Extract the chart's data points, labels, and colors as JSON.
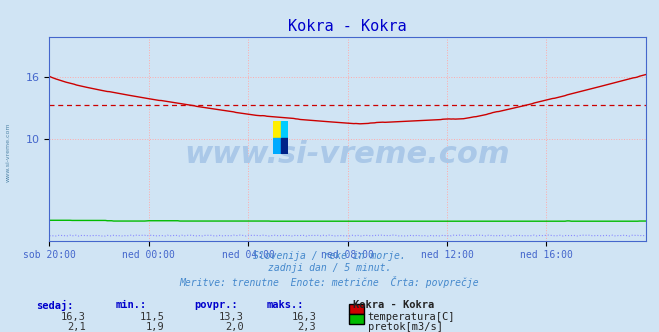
{
  "title": "Kokra - Kokra",
  "title_color": "#0000cc",
  "bg_color": "#d0e4f4",
  "plot_bg_color": "#d0e4f4",
  "grid_color": "#ffaaaa",
  "grid_linestyle": ":",
  "tick_color": "#4466cc",
  "x_tick_labels": [
    "sob 20:00",
    "ned 00:00",
    "ned 04:00",
    "ned 08:00",
    "ned 12:00",
    "ned 16:00"
  ],
  "x_tick_positions": [
    0,
    48,
    96,
    144,
    192,
    240
  ],
  "total_points": 289,
  "y_range": [
    0,
    20
  ],
  "y_ticks": [
    10,
    16
  ],
  "avg_line_value": 13.3,
  "avg_line_color": "#cc0000",
  "temp_color": "#cc0000",
  "flow_color": "#00bb00",
  "height_color": "#8888ff",
  "watermark_text": "www.si-vreme.com",
  "watermark_color": "#aac8e8",
  "subtitle_lines": [
    "Slovenija / reke in morje.",
    "zadnji dan / 5 minut.",
    "Meritve: trenutne  Enote: metrične  Črta: povprečje"
  ],
  "subtitle_color": "#4488cc",
  "footer_label_color": "#0000cc",
  "footer_headers": [
    "sedaj:",
    "min.:",
    "povpr.:",
    "maks.:"
  ],
  "footer_row1_vals": [
    "16,3",
    "11,5",
    "13,3",
    "16,3"
  ],
  "footer_row2_vals": [
    "2,1",
    "1,9",
    "2,0",
    "2,3"
  ],
  "footer_station": "Kokra - Kokra",
  "footer_legend1": "temperatura[C]",
  "footer_legend2": "pretok[m3/s]",
  "left_axis_color": "#4466cc",
  "spine_color": "#4466cc"
}
